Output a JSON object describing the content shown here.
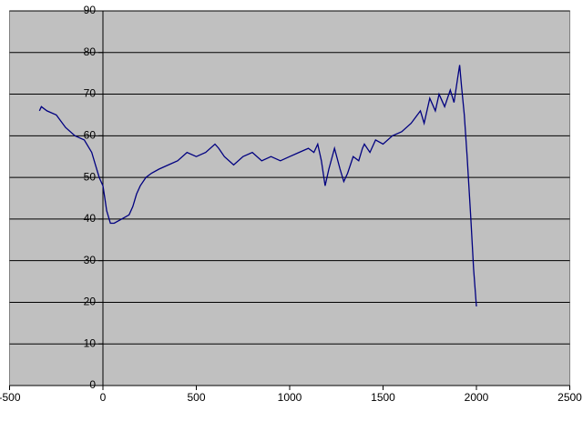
{
  "chart_data": {
    "type": "line",
    "x": [
      -340,
      -330,
      -300,
      -250,
      -200,
      -150,
      -100,
      -60,
      -40,
      -20,
      0,
      10,
      20,
      40,
      60,
      100,
      140,
      160,
      180,
      200,
      230,
      260,
      300,
      350,
      400,
      450,
      500,
      550,
      600,
      620,
      650,
      700,
      750,
      800,
      850,
      900,
      950,
      1000,
      1050,
      1100,
      1130,
      1150,
      1170,
      1190,
      1210,
      1240,
      1270,
      1290,
      1310,
      1340,
      1370,
      1390,
      1400,
      1430,
      1460,
      1500,
      1550,
      1600,
      1650,
      1700,
      1720,
      1750,
      1780,
      1800,
      1830,
      1860,
      1880,
      1900,
      1910,
      1920,
      1935,
      1950,
      1970,
      1985,
      2000
    ],
    "values": [
      66,
      67,
      66,
      65,
      62,
      60,
      59,
      56,
      53,
      50,
      48,
      45,
      42,
      39,
      39,
      40,
      41,
      43,
      46,
      48,
      50,
      51,
      52,
      53,
      54,
      56,
      55,
      56,
      58,
      57,
      55,
      53,
      55,
      56,
      54,
      55,
      54,
      55,
      56,
      57,
      56,
      58,
      54,
      48,
      52,
      57,
      52,
      49,
      51,
      55,
      54,
      57,
      58,
      56,
      59,
      58,
      60,
      61,
      63,
      66,
      63,
      69,
      66,
      70,
      67,
      71,
      68,
      74,
      77,
      72,
      65,
      55,
      40,
      28,
      19
    ],
    "color": "#000080",
    "xlim": [
      -500,
      2500
    ],
    "xticks": [
      -500,
      0,
      500,
      1000,
      1500,
      2000,
      2500
    ],
    "ylim": [
      0,
      90
    ],
    "yticks": [
      0,
      10,
      20,
      30,
      40,
      50,
      60,
      70,
      80,
      90
    ],
    "grid": true
  }
}
